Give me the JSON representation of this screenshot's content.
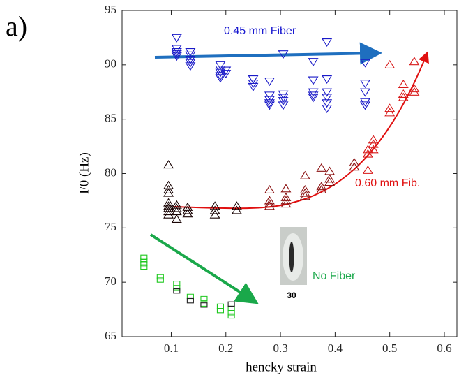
{
  "panel_label": "a)",
  "chart_data": {
    "type": "scatter",
    "xlabel": "hencky strain",
    "ylabel": "F0 (Hz)",
    "xlim": [
      0.01,
      0.623
    ],
    "ylim": [
      65,
      95
    ],
    "xticks": [
      0.1,
      0.2,
      0.3,
      0.4,
      0.5,
      0.6
    ],
    "yticks": [
      65,
      70,
      75,
      80,
      85,
      90,
      95
    ],
    "annotations": [
      "0.45 mm Fiber",
      "0.60 mm Fib.",
      "No Fiber",
      "30"
    ],
    "series": [
      {
        "marker": "triangle-down",
        "color": "#1a1ac8",
        "x": [
          0.11,
          0.11,
          0.11,
          0.11,
          0.11,
          0.135,
          0.135,
          0.135,
          0.135,
          0.135,
          0.19,
          0.19,
          0.19,
          0.19,
          0.19,
          0.2,
          0.2,
          0.25,
          0.25,
          0.25,
          0.28,
          0.28,
          0.28,
          0.28,
          0.28,
          0.305,
          0.305,
          0.305,
          0.305,
          0.305,
          0.36,
          0.36,
          0.36,
          0.36,
          0.36,
          0.385,
          0.385,
          0.385,
          0.385,
          0.385,
          0.385,
          0.455,
          0.455,
          0.455,
          0.455,
          0.455
        ],
        "values": [
          92.5,
          91.5,
          91.2,
          91.0,
          90.8,
          91.2,
          90.9,
          90.5,
          90.2,
          89.9,
          90.0,
          89.6,
          89.3,
          89.0,
          88.8,
          89.5,
          89.2,
          88.7,
          88.3,
          88.0,
          88.5,
          87.2,
          86.8,
          86.5,
          86.3,
          91.0,
          87.3,
          87.0,
          86.7,
          86.3,
          90.3,
          88.6,
          87.5,
          87.2,
          87.0,
          92.1,
          88.7,
          87.5,
          87.0,
          86.5,
          86.0,
          90.2,
          88.3,
          87.5,
          86.6,
          86.3
        ]
      },
      {
        "marker": "triangle-up",
        "color": "#1a0505",
        "x": [
          0.095,
          0.095,
          0.095,
          0.095,
          0.095,
          0.095,
          0.095,
          0.095,
          0.095,
          0.11,
          0.11,
          0.11,
          0.11,
          0.13,
          0.13,
          0.13,
          0.18,
          0.18,
          0.18,
          0.22,
          0.22
        ],
        "values": [
          80.8,
          78.9,
          78.5,
          78.2,
          77.3,
          77.0,
          76.8,
          76.5,
          76.2,
          77.1,
          76.8,
          76.5,
          75.8,
          76.9,
          76.6,
          76.3,
          77.0,
          76.6,
          76.2,
          77.0,
          76.6
        ]
      },
      {
        "marker": "triangle-up",
        "color": "#8b1010",
        "x": [
          0.28,
          0.28,
          0.28,
          0.28,
          0.31,
          0.31,
          0.31,
          0.31,
          0.345,
          0.345,
          0.345,
          0.345,
          0.375,
          0.375,
          0.375,
          0.39,
          0.39,
          0.39,
          0.435,
          0.435
        ],
        "values": [
          78.5,
          77.5,
          77.2,
          77.0,
          78.6,
          77.8,
          77.5,
          77.2,
          79.8,
          78.5,
          78.2,
          77.9,
          80.5,
          78.8,
          78.5,
          80.2,
          79.5,
          79.2,
          81.0,
          80.6
        ]
      },
      {
        "marker": "triangle-up",
        "color": "#d81818",
        "x": [
          0.46,
          0.46,
          0.46,
          0.47,
          0.47,
          0.47,
          0.5,
          0.5,
          0.5,
          0.525,
          0.525,
          0.525,
          0.545,
          0.545,
          0.545
        ],
        "values": [
          82.2,
          81.8,
          80.3,
          83.1,
          82.7,
          82.2,
          90.0,
          86.0,
          85.6,
          88.2,
          87.3,
          87.0,
          90.3,
          87.8,
          87.5
        ]
      },
      {
        "marker": "square",
        "color": "#1ec81e",
        "x": [
          0.05,
          0.05,
          0.05,
          0.05,
          0.08,
          0.08,
          0.11,
          0.11,
          0.135,
          0.16,
          0.16,
          0.19,
          0.19,
          0.21,
          0.21,
          0.21
        ],
        "values": [
          72.3,
          72.0,
          71.7,
          71.4,
          70.5,
          70.2,
          69.9,
          69.5,
          68.7,
          68.5,
          68.0,
          67.8,
          67.4,
          67.6,
          67.2,
          66.9
        ]
      },
      {
        "marker": "square",
        "color": "#222222",
        "x": [
          0.11,
          0.135,
          0.16,
          0.21
        ],
        "values": [
          69.2,
          68.3,
          67.9,
          68.0
        ]
      }
    ]
  }
}
